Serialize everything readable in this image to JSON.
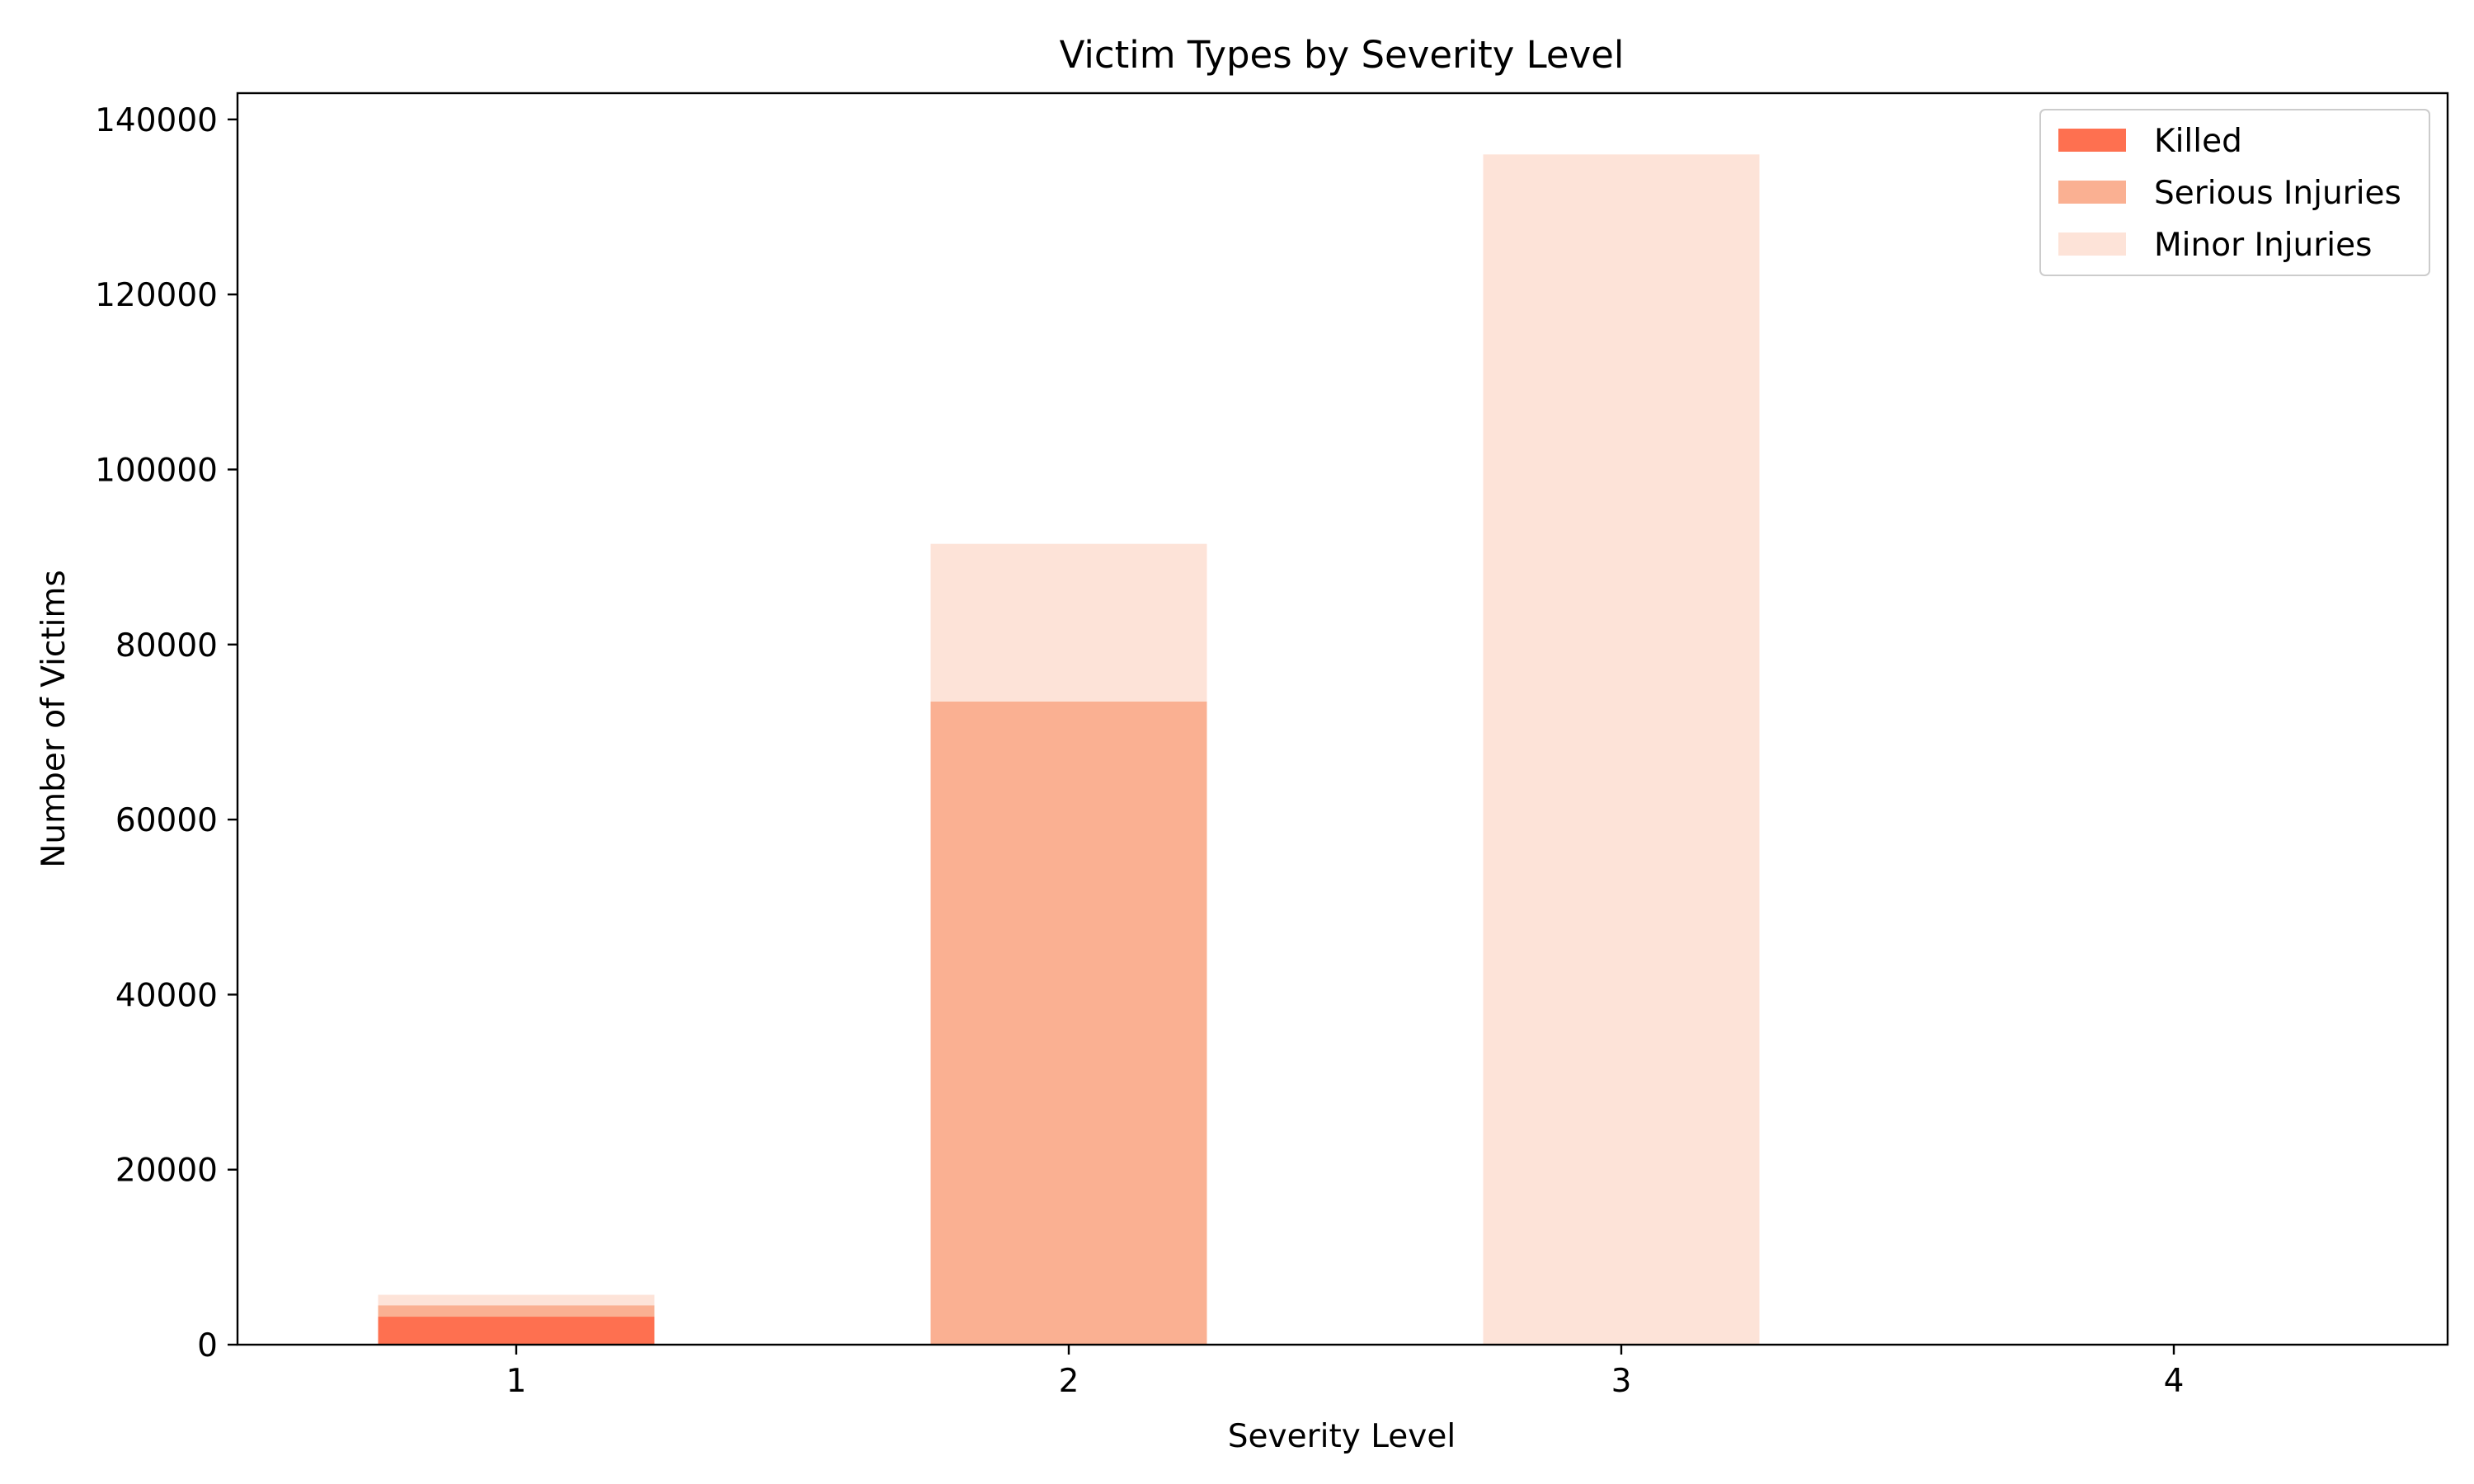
{
  "chart_data": {
    "type": "bar",
    "stacked": true,
    "title": "Victim Types by Severity Level",
    "xlabel": "Severity Level",
    "ylabel": "Number of Victims",
    "categories": [
      "1",
      "2",
      "3",
      "4"
    ],
    "ylim": [
      0,
      143000
    ],
    "yticks": [
      0,
      20000,
      40000,
      60000,
      80000,
      100000,
      120000,
      140000
    ],
    "series": [
      {
        "name": "Killed",
        "color": "#fe7050",
        "values": [
          3200,
          0,
          0,
          0
        ]
      },
      {
        "name": "Serious Injuries",
        "color": "#fab092",
        "values": [
          1300,
          73500,
          0,
          0
        ]
      },
      {
        "name": "Minor Injuries",
        "color": "#fde3d8",
        "values": [
          1200,
          18000,
          136000,
          0
        ]
      }
    ],
    "legend_position": "top-right",
    "grid": false
  }
}
